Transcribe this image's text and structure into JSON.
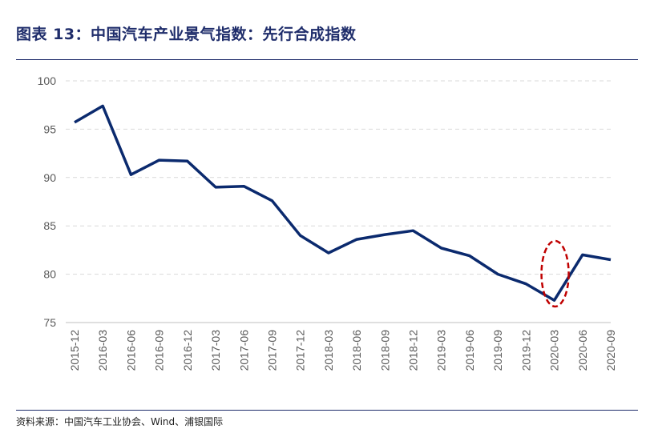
{
  "title": "图表 13：中国汽车产业景气指数：先行合成指数",
  "source": "资料来源：中国汽车工业协会、Wind、浦银国际",
  "colors": {
    "line": "#0b2a6e",
    "title": "#1f2d6b",
    "grid": "#d9d9d9",
    "highlight": "#c00000"
  },
  "chart_data": {
    "type": "line",
    "title": "",
    "xlabel": "",
    "ylabel": "",
    "ylim": [
      75,
      100
    ],
    "yticks": [
      75,
      80,
      85,
      90,
      95,
      100
    ],
    "grid": "horizontal dashed",
    "categories": [
      "2015-12",
      "2016-03",
      "2016-06",
      "2016-09",
      "2016-12",
      "2017-03",
      "2017-06",
      "2017-09",
      "2017-12",
      "2018-03",
      "2018-06",
      "2018-09",
      "2018-12",
      "2019-03",
      "2019-06",
      "2019-09",
      "2019-12",
      "2020-03",
      "2020-06",
      "2020-09"
    ],
    "x": [
      "2015-12",
      "2016-03",
      "2016-06",
      "2016-09",
      "2016-12",
      "2017-03",
      "2017-06",
      "2017-09",
      "2017-12",
      "2018-03",
      "2018-06",
      "2018-09",
      "2018-12",
      "2019-03",
      "2019-06",
      "2019-09",
      "2019-12",
      "2020-03",
      "2020-06",
      "2020-09"
    ],
    "series": [
      {
        "name": "",
        "values": [
          95.7,
          97.4,
          90.3,
          91.8,
          91.7,
          89.0,
          89.1,
          87.6,
          84.0,
          82.2,
          83.6,
          84.1,
          84.5,
          82.7,
          81.9,
          80.0,
          79.0,
          77.3,
          82.0,
          81.5
        ]
      }
    ],
    "annotation": {
      "type": "dashed-ellipse",
      "around": "2020-03"
    }
  }
}
